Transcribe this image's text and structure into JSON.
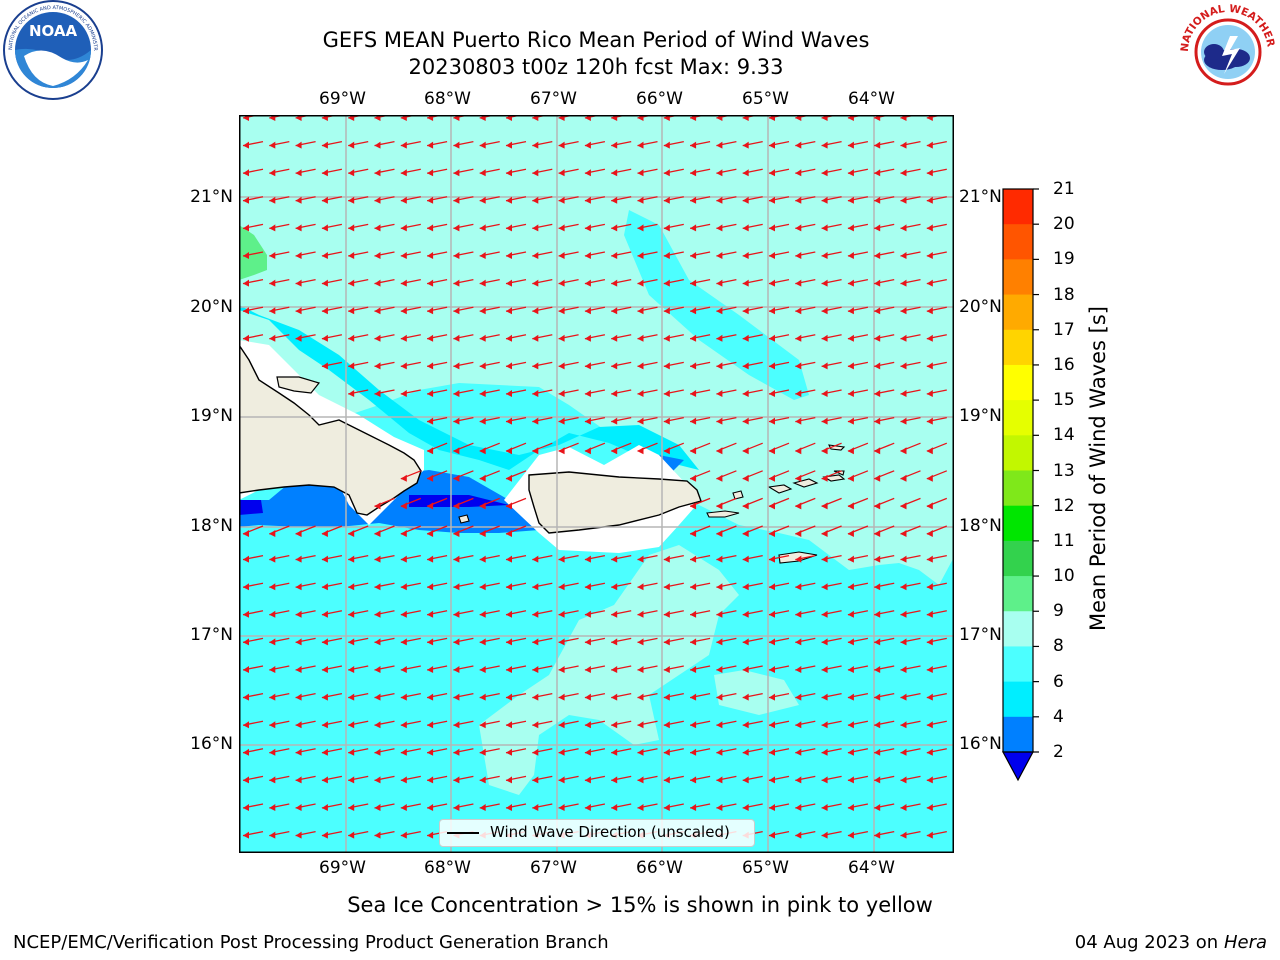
{
  "header": {
    "title_line1": "GEFS MEAN Puerto Rico Mean Period of Wind Waves",
    "title_line2": "20230803 t00z 120h fcst   Max: 9.33"
  },
  "logos": {
    "noaa_text": "NOAA",
    "noaa_ring_text": "NATIONAL OCEANIC AND ATMOSPHERIC ADMINISTRATION · U.S. DEPARTMENT OF COMMERCE",
    "nws_ring_text": "NATIONAL WEATHER SERVICE"
  },
  "map": {
    "lon_labels": [
      "69°W",
      "68°W",
      "67°W",
      "66°W",
      "65°W",
      "64°W"
    ],
    "lat_labels": [
      "21°N",
      "20°N",
      "19°N",
      "18°N",
      "17°N",
      "16°N"
    ],
    "legend_label": "Wind Wave Direction (unscaled)",
    "arrow_color": "#e8141a",
    "coast_color": "#000000",
    "land_color": "#efeddf",
    "gridline_color": "#b5b5b5"
  },
  "colorbar": {
    "label": "Mean Period of Wind Waves [s]",
    "ticks": [
      "21",
      "20",
      "19",
      "18",
      "17",
      "16",
      "15",
      "14",
      "13",
      "12",
      "11",
      "10",
      "9",
      "8",
      "6",
      "4",
      "2"
    ],
    "colors": [
      "#ff0000",
      "#ff2a00",
      "#ff5500",
      "#ff8000",
      "#ffaa00",
      "#ffd400",
      "#ffff00",
      "#e5ff00",
      "#c2f700",
      "#7fe81a",
      "#00e600",
      "#33d24d",
      "#5ef08a",
      "#a8fff0",
      "#4cffff",
      "#00eeff",
      "#0080ff"
    ],
    "under_color": "#0000ee"
  },
  "footer": {
    "note": "Sea Ice Concentration > 15% is shown in pink to yellow",
    "branch": "NCEP/EMC/Verification Post Processing Product Generation Branch",
    "date": "04 Aug 2023 on",
    "machine": "Hera"
  }
}
